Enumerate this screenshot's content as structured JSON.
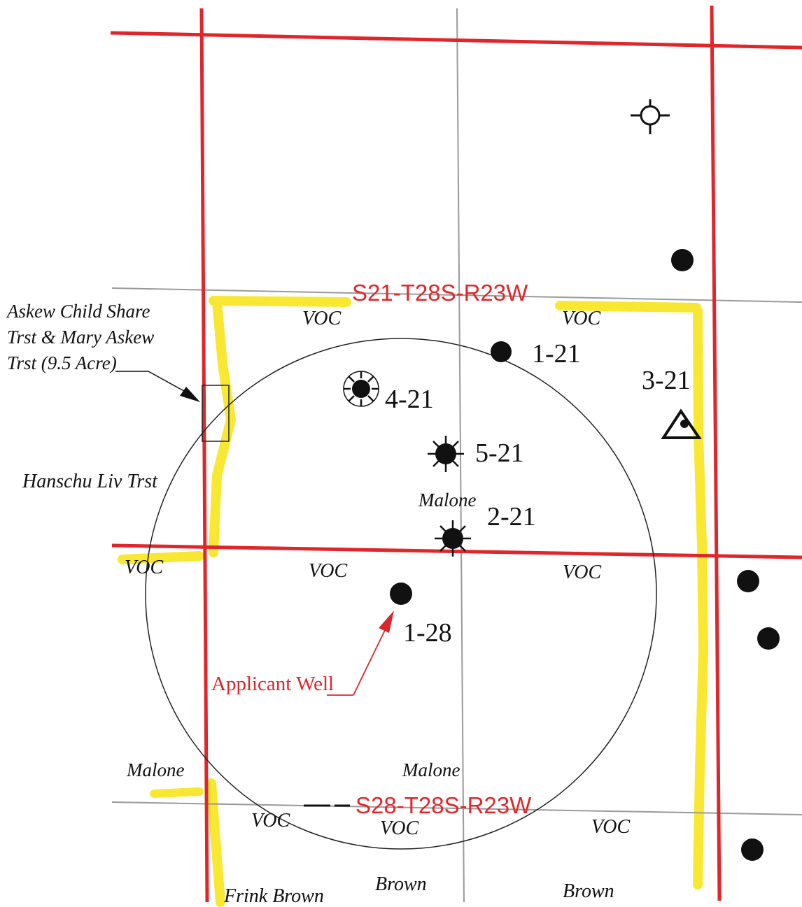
{
  "colors": {
    "section_line": "#e0262b",
    "quarter_line": "#9a9a9a",
    "highlight": "#f7e51c",
    "ink": "#111111",
    "annotation_red": "#d8262b"
  },
  "sections": {
    "north": "S21-T28S-R23W",
    "south": "S28-T28S-R23W"
  },
  "owners": {
    "askew": [
      "Askew Child Share",
      "Trst & Mary Askew",
      "Trst (9.5 Acre)"
    ],
    "hanschu": "Hanschu Liv Trst",
    "malone_center": "Malone",
    "malone_sw": "Malone",
    "malone_s": "Malone",
    "frink_brown": "Frink Brown",
    "brown_1": "Brown",
    "brown_2": "Brown"
  },
  "voc_labels": [
    "VOC",
    "VOC",
    "VOC",
    "VOC",
    "VOC",
    "VOC",
    "VOC",
    "VOC"
  ],
  "wells": {
    "w1_21": {
      "label": "1-21",
      "symbol": "oil-well-icon"
    },
    "w4_21": {
      "label": "4-21",
      "symbol": "plugged-well-icon"
    },
    "w5_21": {
      "label": "5-21",
      "symbol": "gas-well-icon"
    },
    "w2_21": {
      "label": "2-21",
      "symbol": "gas-well-icon"
    },
    "w3_21": {
      "label": "3-21",
      "symbol": "triangle-well-icon"
    },
    "w1_28": {
      "label": "1-28",
      "symbol": "oil-well-icon"
    }
  },
  "applicant": "Applicant Well"
}
